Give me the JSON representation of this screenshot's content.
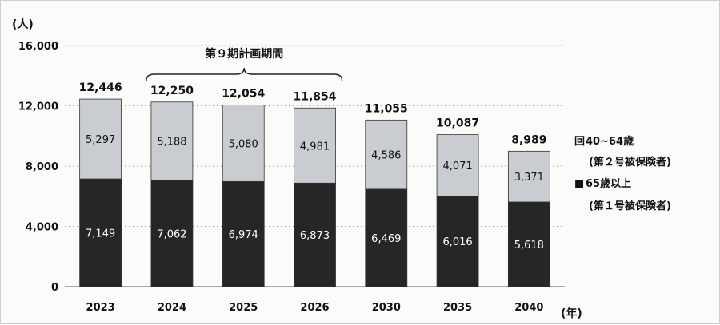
{
  "chart_data": {
    "type": "bar",
    "stacked": true,
    "y_unit": "(人)",
    "x_unit": "(年)",
    "categories": [
      "2023",
      "2024",
      "2025",
      "2026",
      "2030",
      "2035",
      "2040"
    ],
    "series": [
      {
        "name": "65歳以上",
        "name_sub": "(第１号被保険者)",
        "values": [
          7149,
          7062,
          6974,
          6873,
          6469,
          6016,
          5618
        ],
        "color": "#262626",
        "label_color": "#ffffff"
      },
      {
        "name": "40~64歳",
        "name_sub": "(第２号被保険者)",
        "values": [
          5297,
          5188,
          5080,
          4981,
          4586,
          4071,
          3371
        ],
        "color": "#c9ccd1",
        "label_color": "#111111"
      }
    ],
    "totals": [
      12446,
      12250,
      12054,
      11854,
      11055,
      10087,
      8989
    ],
    "ylim": [
      0,
      16000
    ],
    "yticks": [
      0,
      4000,
      8000,
      12000,
      16000
    ],
    "grid": true,
    "legend_position": "right",
    "annotation": {
      "text": "第９期計画期間",
      "from": "2024",
      "to": "2026"
    }
  },
  "legend_markers": [
    "回",
    "■"
  ]
}
